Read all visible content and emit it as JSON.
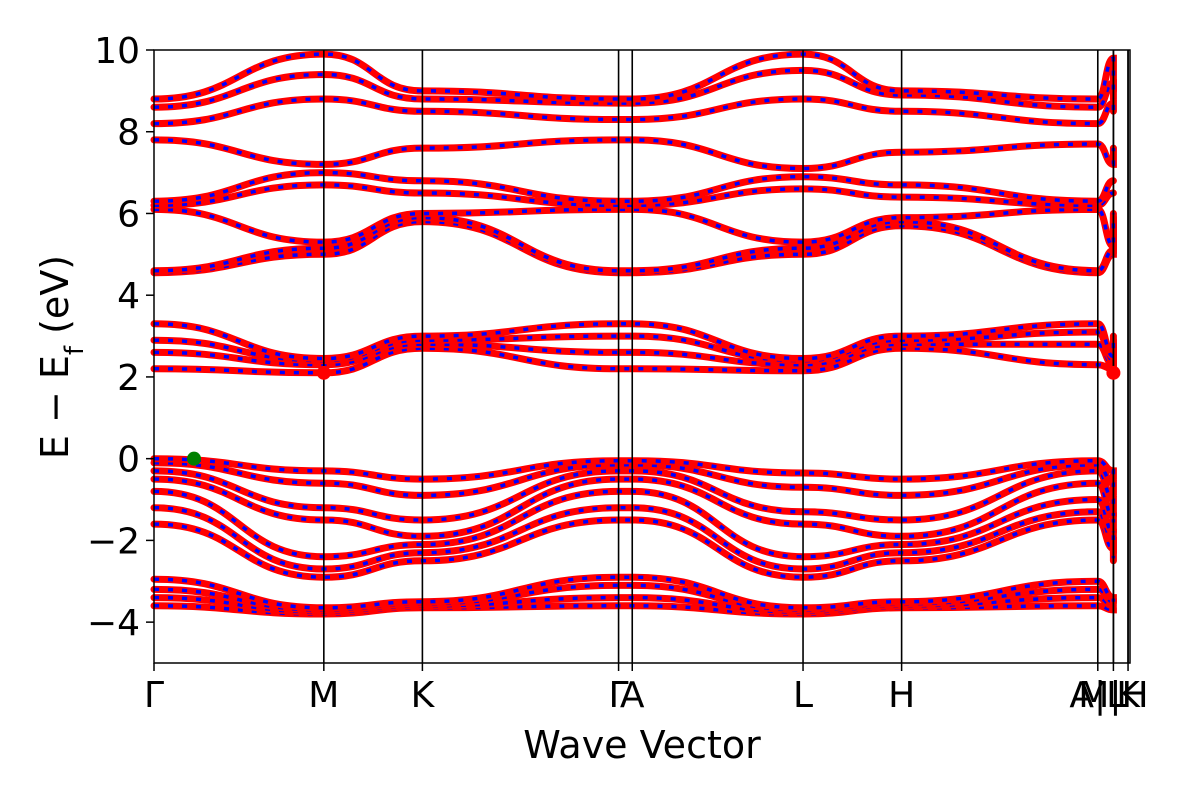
{
  "chart_data": {
    "type": "line",
    "xlabel": "Wave Vector",
    "ylabel_parts": {
      "lead": "E − E",
      "sub": "f",
      "tail": " (eV)"
    },
    "ylim": [
      -5,
      10
    ],
    "yticks": [
      -4,
      -2,
      0,
      2,
      4,
      6,
      8,
      10
    ],
    "ytick_labels": [
      "−4",
      "−2",
      "0",
      "2",
      "4",
      "6",
      "8",
      "10"
    ],
    "xlim": [
      0,
      1
    ],
    "kpoints": [
      {
        "label": "Γ",
        "x": 0.0
      },
      {
        "label": "M",
        "x": 0.174
      },
      {
        "label": "K",
        "x": 0.275
      },
      {
        "label": "Γ",
        "x": 0.476
      },
      {
        "label": "A",
        "x": 0.49
      },
      {
        "label": "L",
        "x": 0.665
      },
      {
        "label": "H",
        "x": 0.766
      },
      {
        "label": "A",
        "x": 0.967
      },
      {
        "label": "L",
        "x": 0.983
      },
      {
        "label": "M",
        "x": 0.983
      },
      {
        "label": "H",
        "x": 0.998
      },
      {
        "label": "K",
        "x": 0.998
      }
    ],
    "kpoint_tick_labels": [
      {
        "text": "Γ",
        "x": 0.0
      },
      {
        "text": "M",
        "x": 0.174
      },
      {
        "text": "K",
        "x": 0.275
      },
      {
        "text": "Γ",
        "x": 0.476
      },
      {
        "text": "A",
        "x": 0.49
      },
      {
        "text": "L",
        "x": 0.665
      },
      {
        "text": "H",
        "x": 0.766
      },
      {
        "text": "A|L",
        "x": 0.967
      },
      {
        "text": "M|H",
        "x": 0.983
      },
      {
        "text": "K",
        "x": 0.998
      }
    ],
    "band_color_primary": "#ff0000",
    "band_color_secondary": "#0000ff",
    "vbm": {
      "x": 0.041,
      "y": 0.0,
      "color": "#008000"
    },
    "cbm": [
      {
        "x": 0.174,
        "y": 2.1,
        "color": "#ff0000"
      },
      {
        "x": 0.983,
        "y": 2.1,
        "color": "#ff0000"
      }
    ],
    "bands": [
      {
        "name": "b1",
        "y": [
          -3.6,
          -3.8,
          -3.65,
          -3.6,
          -3.6,
          -3.8,
          -3.65,
          -3.6,
          -3.7,
          -3.65
        ]
      },
      {
        "name": "b2",
        "y": [
          -3.4,
          -3.75,
          -3.6,
          -3.4,
          -3.4,
          -3.75,
          -3.6,
          -3.4,
          -3.6,
          -3.6
        ]
      },
      {
        "name": "b3",
        "y": [
          -3.2,
          -3.7,
          -3.55,
          -3.1,
          -3.1,
          -3.7,
          -3.55,
          -3.2,
          -3.5,
          -3.55
        ]
      },
      {
        "name": "b4",
        "y": [
          -2.95,
          -3.65,
          -3.5,
          -2.9,
          -2.9,
          -3.65,
          -3.5,
          -3.0,
          -3.4,
          -3.5
        ]
      },
      {
        "name": "b5",
        "y": [
          -1.6,
          -2.9,
          -2.5,
          -1.5,
          -1.5,
          -2.9,
          -2.5,
          -1.5,
          -2.2,
          -2.5
        ]
      },
      {
        "name": "b6",
        "y": [
          -1.2,
          -2.7,
          -2.3,
          -1.2,
          -1.2,
          -2.7,
          -2.3,
          -1.3,
          -2.0,
          -2.3
        ]
      },
      {
        "name": "b7",
        "y": [
          -0.8,
          -2.4,
          -2.1,
          -0.8,
          -0.8,
          -2.4,
          -2.1,
          -1.0,
          -1.8,
          -2.1
        ]
      },
      {
        "name": "b8",
        "y": [
          -0.5,
          -1.5,
          -1.9,
          -0.5,
          -0.5,
          -1.6,
          -1.9,
          -0.6,
          -1.4,
          -1.8
        ]
      },
      {
        "name": "b9",
        "y": [
          -0.3,
          -1.2,
          -1.5,
          -0.3,
          -0.3,
          -1.3,
          -1.5,
          -0.3,
          -1.0,
          -1.4
        ]
      },
      {
        "name": "b10",
        "y": [
          -0.1,
          -0.6,
          -0.9,
          -0.15,
          -0.15,
          -0.7,
          -0.9,
          -0.15,
          -0.6,
          -0.9
        ]
      },
      {
        "name": "b11",
        "y": [
          0.0,
          -0.3,
          -0.5,
          -0.05,
          -0.05,
          -0.35,
          -0.5,
          -0.05,
          -0.3,
          -0.5
        ]
      },
      {
        "name": "b12",
        "y": [
          2.2,
          2.1,
          2.7,
          2.2,
          2.2,
          2.15,
          2.7,
          2.3,
          2.2,
          2.7
        ]
      },
      {
        "name": "b13",
        "y": [
          2.6,
          2.3,
          2.8,
          2.6,
          2.6,
          2.3,
          2.8,
          2.8,
          2.3,
          2.8
        ]
      },
      {
        "name": "b14",
        "y": [
          2.9,
          2.4,
          2.9,
          3.0,
          3.0,
          2.4,
          2.9,
          3.1,
          2.4,
          2.9
        ]
      },
      {
        "name": "b15",
        "y": [
          3.3,
          2.45,
          3.0,
          3.3,
          3.3,
          2.45,
          3.0,
          3.3,
          2.5,
          3.0
        ]
      },
      {
        "name": "b16",
        "y": [
          4.55,
          5.0,
          5.8,
          4.55,
          4.55,
          5.0,
          5.7,
          4.55,
          5.0,
          5.8
        ]
      },
      {
        "name": "b17",
        "y": [
          4.6,
          5.15,
          5.9,
          4.6,
          4.6,
          5.15,
          5.8,
          4.6,
          5.1,
          5.9
        ]
      },
      {
        "name": "b18",
        "y": [
          6.1,
          5.3,
          6.0,
          6.1,
          6.1,
          5.3,
          5.9,
          6.1,
          5.2,
          6.0
        ]
      },
      {
        "name": "b19",
        "y": [
          6.2,
          6.7,
          6.5,
          6.2,
          6.2,
          6.6,
          6.4,
          6.2,
          6.5,
          6.5
        ]
      },
      {
        "name": "b20",
        "y": [
          6.3,
          7.0,
          6.8,
          6.3,
          6.3,
          6.9,
          6.7,
          6.3,
          6.8,
          6.8
        ]
      },
      {
        "name": "b21",
        "y": [
          7.8,
          7.2,
          7.6,
          7.8,
          7.8,
          7.1,
          7.5,
          7.7,
          7.2,
          7.6
        ]
      },
      {
        "name": "b22",
        "y": [
          8.2,
          8.8,
          8.5,
          8.3,
          8.3,
          8.8,
          8.5,
          8.2,
          8.7,
          8.5
        ]
      },
      {
        "name": "b23",
        "y": [
          8.6,
          9.4,
          8.8,
          8.7,
          8.7,
          9.5,
          8.9,
          8.6,
          9.2,
          8.8
        ]
      },
      {
        "name": "b24",
        "y": [
          8.8,
          9.9,
          9.0,
          8.8,
          8.8,
          9.9,
          9.0,
          8.8,
          9.8,
          9.0
        ]
      }
    ]
  }
}
